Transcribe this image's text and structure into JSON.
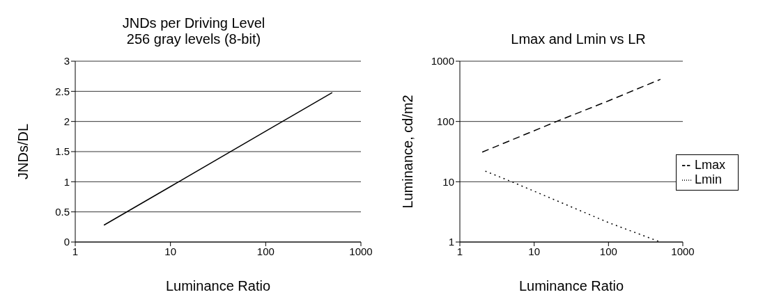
{
  "chart_data": [
    {
      "type": "line",
      "title": "JNDs per Driving Level\n256 gray levels (8-bit)",
      "xlabel": "Luminance Ratio",
      "ylabel": "JNDs/DL",
      "log": "x",
      "xlim": [
        1,
        1000
      ],
      "xticks": [
        1,
        10,
        100,
        1000
      ],
      "ylim": [
        0,
        3
      ],
      "yticks": [
        0,
        0.5,
        1,
        1.5,
        2,
        2.5,
        3
      ],
      "grid": "y",
      "line_style": "solid",
      "legend": false,
      "series": [
        {
          "color": "#000000",
          "x": [
            2,
            10,
            100,
            500
          ],
          "values": [
            0.28,
            0.92,
            1.84,
            2.48
          ]
        }
      ]
    },
    {
      "type": "line",
      "title": "Lmax and Lmin vs LR",
      "xlabel": "Luminance Ratio",
      "ylabel": "Luminance,  cd/m2",
      "log": "xy",
      "xlim": [
        1,
        1000
      ],
      "xticks": [
        1,
        10,
        100,
        1000
      ],
      "ylim": [
        1,
        1000
      ],
      "yticks": [
        1,
        10,
        100,
        1000
      ],
      "grid": "y",
      "legend": "right",
      "series": [
        {
          "name": "Lmin",
          "color": "#000000",
          "line_style": "dotted",
          "x": [
            2.2,
            5,
            100,
            500
          ],
          "values": [
            15,
            10,
            2.1,
            1
          ]
        },
        {
          "name": "Lmax",
          "color": "#000000",
          "line_style": "dashed",
          "x": [
            2,
            20,
            100,
            500
          ],
          "values": [
            31,
            100,
            220,
            500
          ]
        }
      ]
    }
  ]
}
